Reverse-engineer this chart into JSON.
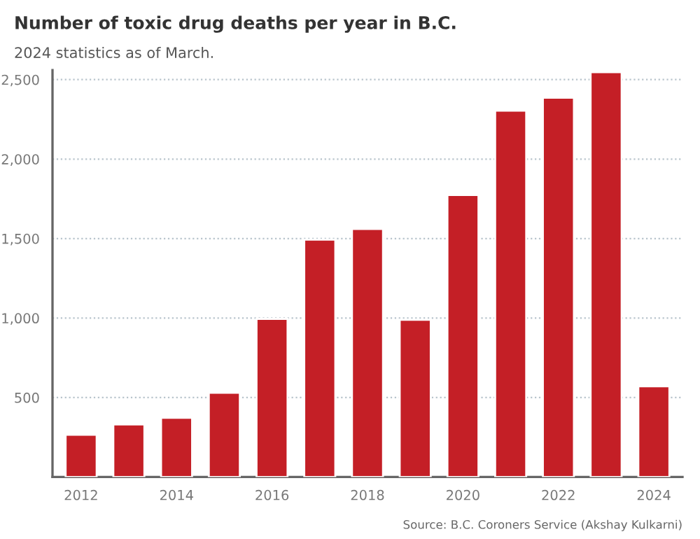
{
  "chart_data": {
    "type": "bar",
    "title": "Number of toxic drug deaths per year in B.C.",
    "subtitle": "2024 statistics as of March.",
    "x": [
      2012,
      2013,
      2014,
      2015,
      2016,
      2017,
      2018,
      2019,
      2020,
      2021,
      2022,
      2023,
      2024
    ],
    "values": [
      266,
      331,
      372,
      530,
      995,
      1493,
      1560,
      989,
      1774,
      2304,
      2386,
      2547,
      571
    ],
    "color": "#c41f26",
    "xlim": [
      2011.4,
      2024.6
    ],
    "xticks": [
      2012,
      2014,
      2016,
      2018,
      2020,
      2022,
      2024
    ],
    "ylim": [
      0,
      2560
    ],
    "yticks": [
      {
        "value": 500,
        "label": "500"
      },
      {
        "value": 1000,
        "label": "1,000"
      },
      {
        "value": 1500,
        "label": "1,500"
      },
      {
        "value": 2000,
        "label": "2,000"
      },
      {
        "value": 2500,
        "label": "2,500"
      }
    ],
    "grid": "y",
    "annotations": [
      "Source: B.C. Coroners Service (Akshay Kulkarni)"
    ]
  }
}
